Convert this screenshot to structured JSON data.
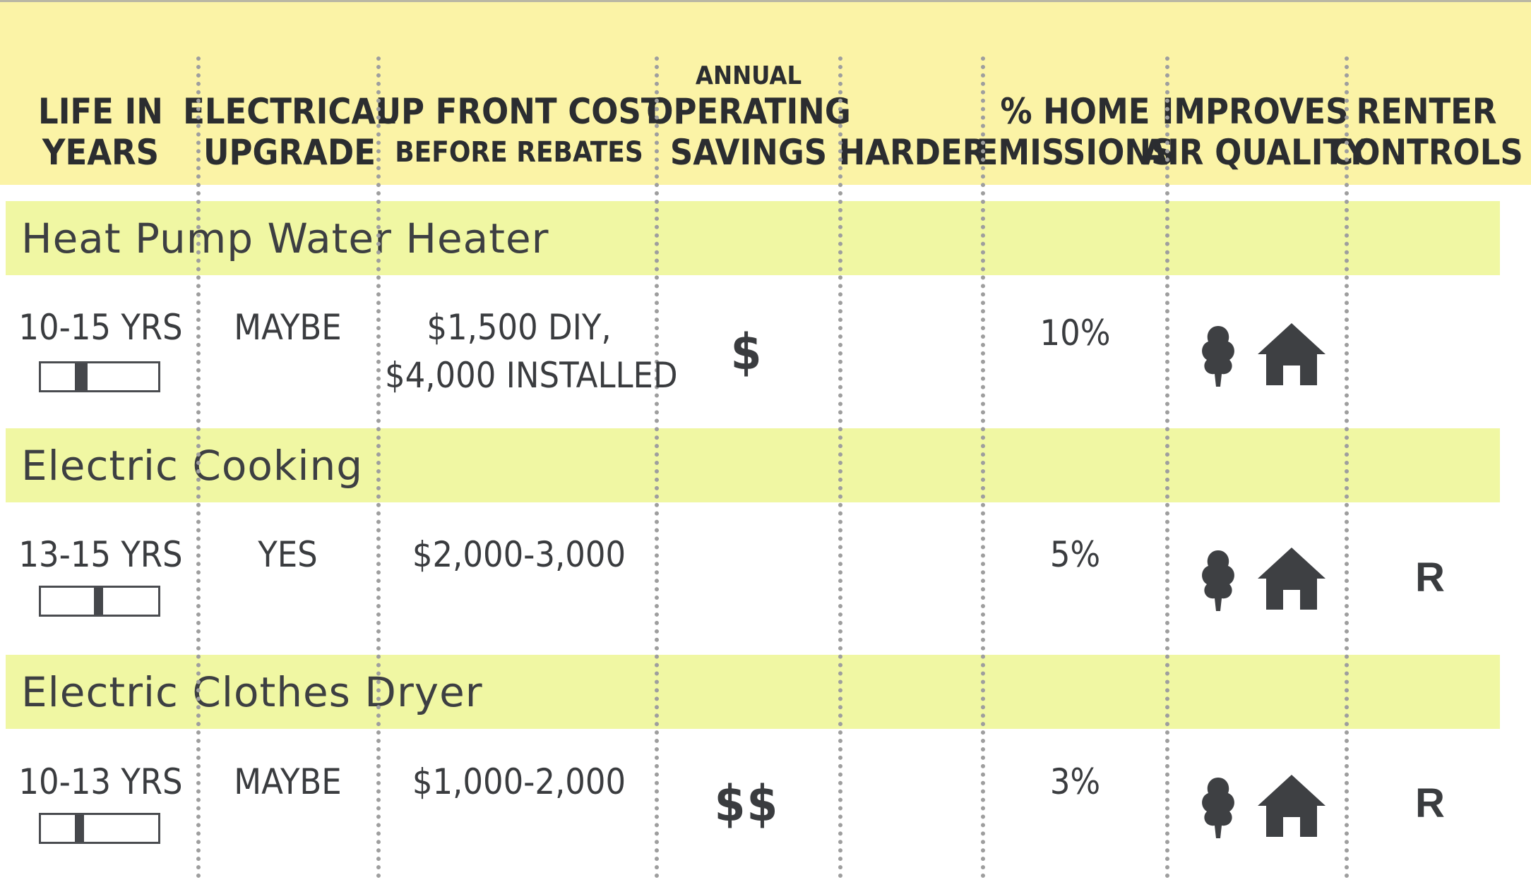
{
  "columns": {
    "life": {
      "lines": [
        "LIFE IN",
        "YEARS"
      ]
    },
    "electrical": {
      "lines": [
        "ELECTRICAL",
        "UPGRADE"
      ]
    },
    "upfront": {
      "main": "UP FRONT COST",
      "sub": "BEFORE REBATES"
    },
    "savings": {
      "top": "ANNUAL",
      "lines": [
        "OPERATING",
        "SAVINGS"
      ]
    },
    "harder": {
      "lines": [
        "HARDER"
      ]
    },
    "emissions": {
      "lines": [
        "% HOME",
        "EMISSIONS"
      ]
    },
    "air": {
      "lines": [
        "IMPROVES",
        "AIR QUALITY"
      ]
    },
    "renter": {
      "lines": [
        "RENTER",
        "CONTROLS"
      ]
    }
  },
  "rows": [
    {
      "title": "Heat Pump Water Heater",
      "life": "10-15 YRS",
      "life_meter": {
        "start": 0.29,
        "end": 0.4
      },
      "electrical": "MAYBE",
      "upfront": [
        "$1,500 DIY,",
        "$4,000 INSTALLED"
      ],
      "savings": "$",
      "harder": "",
      "emissions": "10%",
      "air_icons": [
        "tree-icon",
        "house-icon"
      ],
      "renter": ""
    },
    {
      "title": "Electric Cooking",
      "life": "13-15 YRS",
      "life_meter": {
        "start": 0.45,
        "end": 0.53
      },
      "electrical": "YES",
      "upfront": [
        "$2,000-3,000"
      ],
      "savings": "",
      "harder": "",
      "emissions": "5%",
      "air_icons": [
        "tree-icon",
        "house-icon"
      ],
      "renter": "R"
    },
    {
      "title": "Electric Clothes Dryer",
      "life": "10-13 YRS",
      "life_meter": {
        "start": 0.29,
        "end": 0.37
      },
      "electrical": "MAYBE",
      "upfront": [
        "$1,000-2,000"
      ],
      "savings": "$$",
      "harder": "",
      "emissions": "3%",
      "air_icons": [
        "tree-icon",
        "house-icon"
      ],
      "renter": "R"
    }
  ],
  "colors": {
    "header_bg": "#fbf3a6",
    "band_bg": "#f0f7a3",
    "text": "#3b3d40",
    "icon": "#3e4043",
    "divider": "#9e9e9e"
  }
}
